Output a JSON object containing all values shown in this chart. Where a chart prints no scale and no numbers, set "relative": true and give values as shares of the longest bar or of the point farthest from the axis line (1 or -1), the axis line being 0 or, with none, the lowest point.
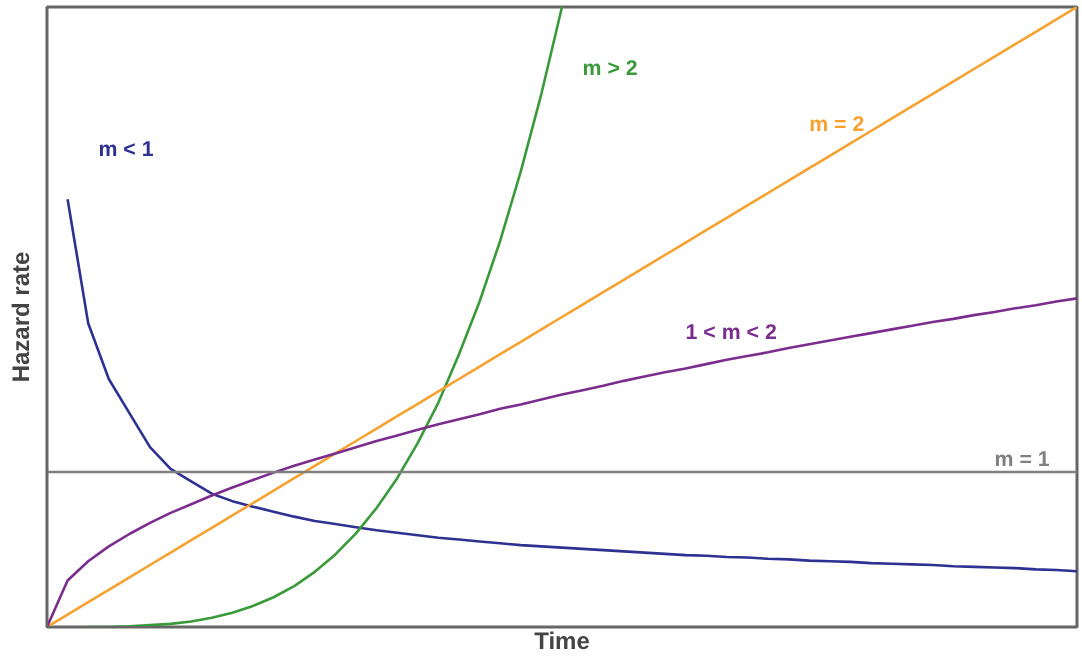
{
  "chart_data": {
    "type": "line",
    "relative": true,
    "xlabel": "Time",
    "ylabel": "Hazard rate",
    "categories": [
      null,
      null,
      null,
      null,
      null,
      null,
      null,
      null,
      null,
      null,
      null,
      null,
      null,
      null,
      null,
      null,
      null,
      null,
      null,
      null,
      null,
      null,
      null,
      null,
      null,
      null,
      null,
      null,
      null,
      null,
      null,
      null,
      null,
      null,
      null,
      null,
      null,
      null,
      null,
      null,
      null,
      null,
      null,
      null,
      null,
      null,
      null,
      null,
      null,
      null,
      null
    ],
    "series": [
      {
        "name": "m < 1",
        "color": "#2e3192",
        "values": [
          null,
          0.69,
          0.49,
          0.4,
          0.345,
          0.29,
          0.255,
          0.235,
          0.215,
          0.203,
          0.194,
          0.186,
          0.178,
          0.171,
          0.166,
          0.161,
          0.156,
          0.152,
          0.148,
          0.144,
          0.141,
          0.138,
          0.135,
          0.132,
          0.13,
          0.128,
          0.126,
          0.124,
          0.122,
          0.12,
          0.118,
          0.116,
          0.115,
          0.113,
          0.112,
          0.11,
          0.109,
          0.107,
          0.106,
          0.105,
          0.103,
          0.102,
          0.101,
          0.1,
          0.098,
          0.097,
          0.096,
          0.095,
          0.093,
          0.092,
          0.09
        ]
      },
      {
        "name": "m > 2",
        "color": "#3a9a3a",
        "values": [
          null,
          null,
          0,
          0,
          0.001,
          0.003,
          0.005,
          0.009,
          0.015,
          0.023,
          0.034,
          0.048,
          0.066,
          0.089,
          0.117,
          0.151,
          0.192,
          0.24,
          0.297,
          0.362,
          0.44,
          0.525,
          0.623,
          0.735,
          0.86,
          1.0,
          null,
          null,
          null,
          null,
          null,
          null,
          null,
          null,
          null,
          null,
          null,
          null,
          null,
          null,
          null,
          null,
          null,
          null,
          null,
          null,
          null,
          null,
          null,
          null,
          null
        ]
      },
      {
        "name": "m = 2",
        "color": "#f7a12f",
        "values": [
          0,
          0.02,
          0.04,
          0.06,
          0.08,
          0.1,
          0.12,
          0.14,
          0.16,
          0.18,
          0.2,
          0.22,
          0.24,
          0.26,
          0.28,
          0.3,
          0.32,
          0.34,
          0.36,
          0.38,
          0.4,
          0.42,
          0.44,
          0.46,
          0.48,
          0.5,
          0.52,
          0.54,
          0.56,
          0.58,
          0.6,
          0.62,
          0.64,
          0.66,
          0.68,
          0.7,
          0.72,
          0.74,
          0.76,
          0.78,
          0.8,
          0.82,
          0.84,
          0.86,
          0.88,
          0.9,
          0.92,
          0.94,
          0.96,
          0.98,
          1.0
        ]
      },
      {
        "name": "1 < m < 2",
        "color": "#7b2d8e",
        "values": [
          0,
          0.075,
          0.106,
          0.13,
          0.15,
          0.168,
          0.184,
          0.198,
          0.212,
          0.225,
          0.237,
          0.249,
          0.26,
          0.27,
          0.28,
          0.29,
          0.3,
          0.309,
          0.318,
          0.327,
          0.335,
          0.343,
          0.352,
          0.359,
          0.367,
          0.375,
          0.382,
          0.389,
          0.397,
          0.404,
          0.411,
          0.417,
          0.424,
          0.431,
          0.437,
          0.443,
          0.45,
          0.456,
          0.462,
          0.468,
          0.474,
          0.48,
          0.486,
          0.492,
          0.497,
          0.503,
          0.508,
          0.514,
          0.519,
          0.525,
          0.53
        ]
      },
      {
        "name": "m = 1",
        "color": "#808080",
        "values": [
          0.25,
          0.25,
          0.25,
          0.25,
          0.25,
          0.25,
          0.25,
          0.25,
          0.25,
          0.25,
          0.25,
          0.25,
          0.25,
          0.25,
          0.25,
          0.25,
          0.25,
          0.25,
          0.25,
          0.25,
          0.25,
          0.25,
          0.25,
          0.25,
          0.25,
          0.25,
          0.25,
          0.25,
          0.25,
          0.25,
          0.25,
          0.25,
          0.25,
          0.25,
          0.25,
          0.25,
          0.25,
          0.25,
          0.25,
          0.25,
          0.25,
          0.25,
          0.25,
          0.25,
          0.25,
          0.25,
          0.25,
          0.25,
          0.25,
          0.25,
          0.25
        ]
      }
    ]
  }
}
